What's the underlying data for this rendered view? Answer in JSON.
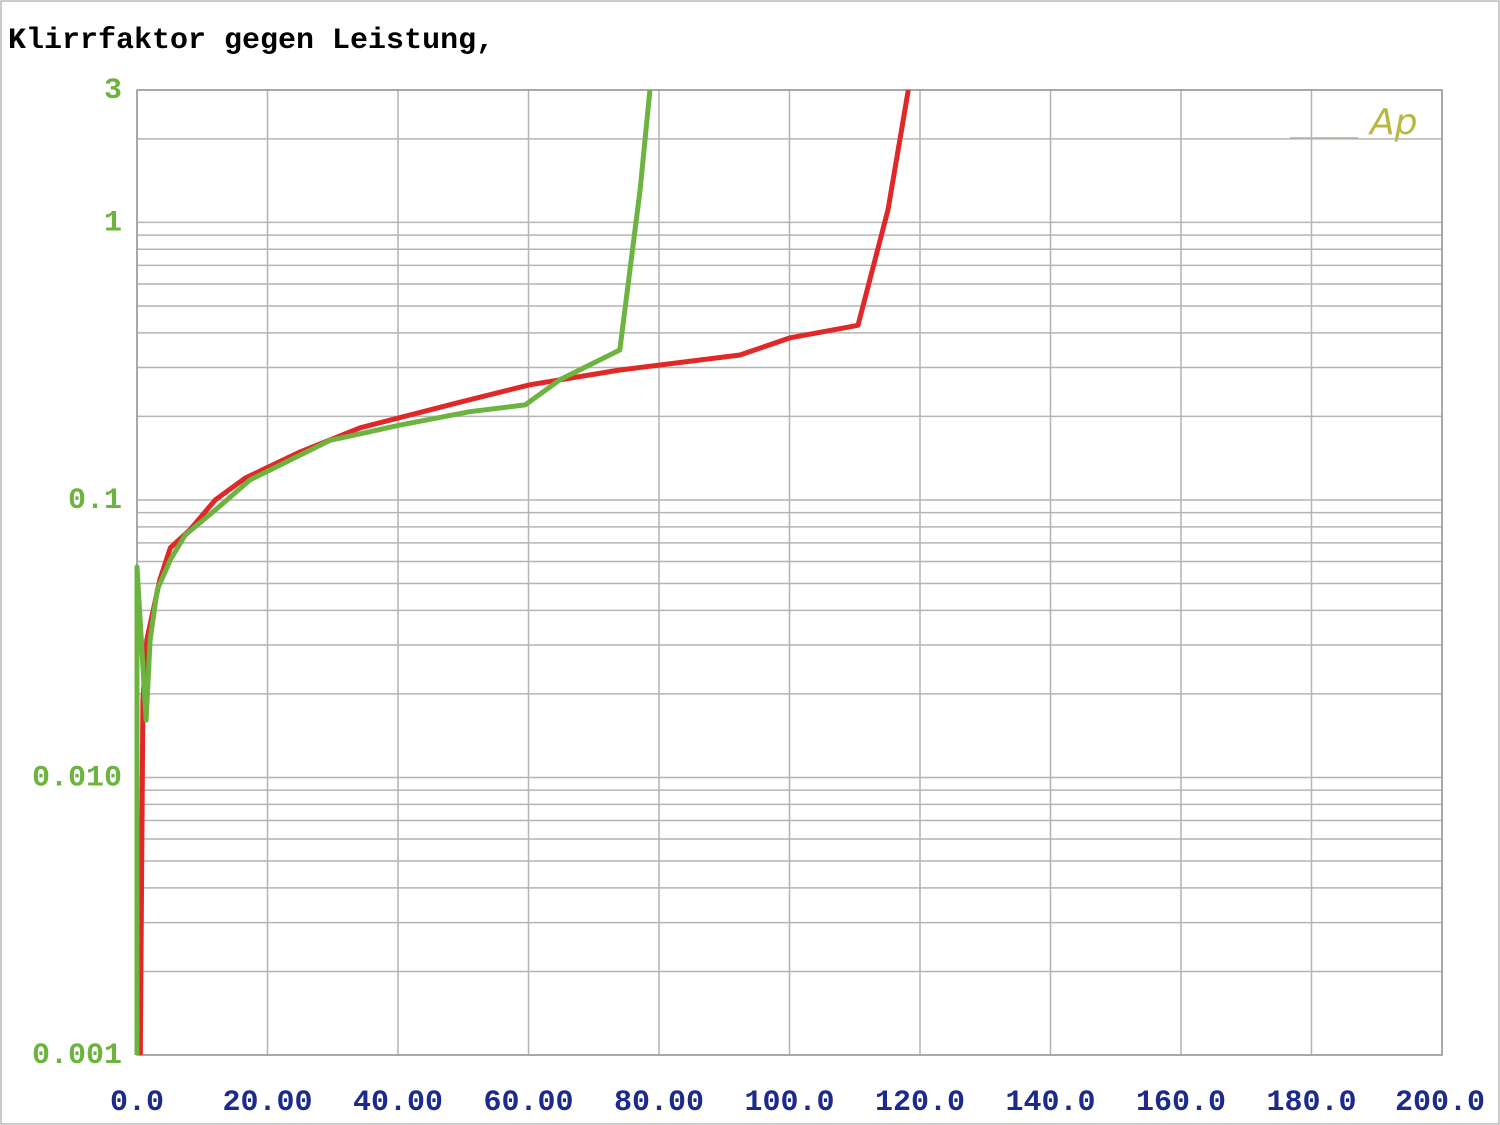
{
  "chart_data": {
    "type": "line",
    "title": "Klirrfaktor gegen Leistung,",
    "annotation": "Ap",
    "log_y": true,
    "grid": true,
    "xlim": [
      0,
      200
    ],
    "ylim": [
      0.001,
      3
    ],
    "xticks": [
      {
        "value": 0,
        "label": "0.0"
      },
      {
        "value": 20,
        "label": "20.00"
      },
      {
        "value": 40,
        "label": "40.00"
      },
      {
        "value": 60,
        "label": "60.00"
      },
      {
        "value": 80,
        "label": "80.00"
      },
      {
        "value": 100,
        "label": "100.0"
      },
      {
        "value": 120,
        "label": "120.0"
      },
      {
        "value": 140,
        "label": "140.0"
      },
      {
        "value": 160,
        "label": "160.0"
      },
      {
        "value": 180,
        "label": "180.0"
      },
      {
        "value": 200,
        "label": "200.0"
      }
    ],
    "yticks": [
      0.001,
      {
        "value": 0.01,
        "label": "0.010"
      },
      0.1,
      1,
      3
    ],
    "series": [
      {
        "color": "#e02828",
        "x": [
          0.5,
          0.9,
          1.5,
          3.5,
          5.1,
          8.1,
          12.0,
          16.6,
          25.0,
          34.2,
          49.5,
          60.2,
          74.0,
          92.4,
          100.1,
          110.5,
          115.1,
          118.2
        ],
        "values": [
          0.001,
          0.019,
          0.0313,
          0.0515,
          0.0672,
          0.078,
          0.1,
          0.12,
          0.149,
          0.182,
          0.225,
          0.26,
          0.294,
          0.333,
          0.384,
          0.426,
          1.11,
          3
        ]
      },
      {
        "color": "#6cb33f",
        "x": [
          0,
          0,
          1.4,
          2.0,
          3.1,
          5.1,
          7.4,
          12.0,
          17.3,
          29.6,
          40.3,
          51.0,
          59.5,
          64.8,
          74.0,
          77.1,
          78.6
        ],
        "values": [
          0.001,
          0.0574,
          0.0161,
          0.0313,
          0.0474,
          0.0608,
          0.0748,
          0.092,
          0.118,
          0.164,
          0.186,
          0.208,
          0.22,
          0.271,
          0.347,
          1.31,
          3
        ]
      }
    ]
  }
}
